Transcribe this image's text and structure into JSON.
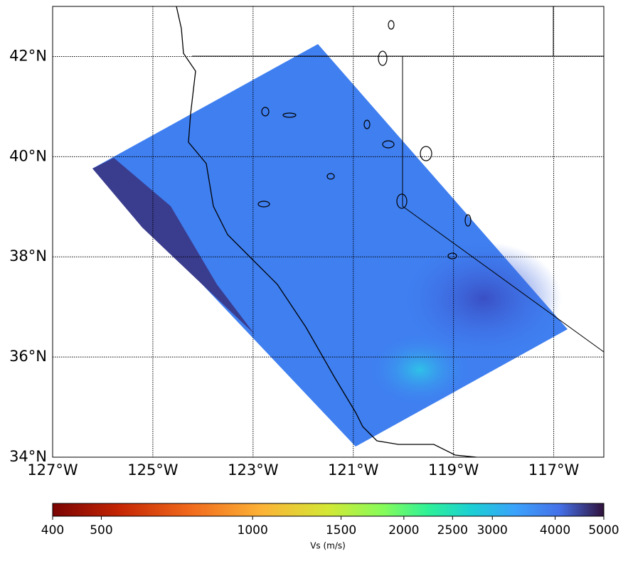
{
  "map": {
    "lon_range": [
      -127,
      -116
    ],
    "lat_range": [
      34,
      43
    ],
    "lon_ticks": [
      {
        "value": -127,
        "label": "127°W"
      },
      {
        "value": -125,
        "label": "125°W"
      },
      {
        "value": -123,
        "label": "123°W"
      },
      {
        "value": -121,
        "label": "121°W"
      },
      {
        "value": -119,
        "label": "119°W"
      },
      {
        "value": -117,
        "label": "117°W"
      }
    ],
    "lat_ticks": [
      {
        "value": 34,
        "label": "34°N"
      },
      {
        "value": 36,
        "label": "36°N"
      },
      {
        "value": 38,
        "label": "38°N"
      },
      {
        "value": 40,
        "label": "40°N"
      },
      {
        "value": 42,
        "label": "42°N"
      }
    ],
    "grid": true
  },
  "colorbar": {
    "label": "Vs (m/s)",
    "range": [
      400,
      5000
    ],
    "log": true,
    "ticks": [
      400,
      500,
      1000,
      1500,
      2000,
      2500,
      3000,
      4000,
      5000
    ]
  }
}
